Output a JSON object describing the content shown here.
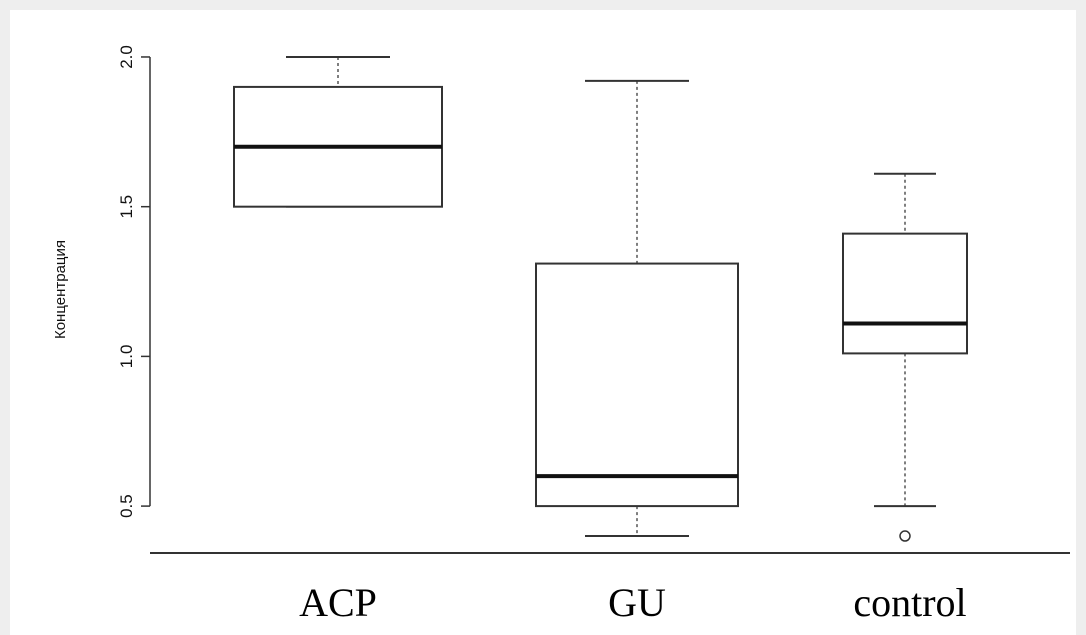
{
  "chart_data": {
    "type": "box",
    "ylabel": "Концентрация",
    "xlabel": "",
    "title": "",
    "ylim": [
      0.33,
      2.05
    ],
    "yticks": [
      "0.5",
      "1.0",
      "1.5",
      "2.0"
    ],
    "categories": [
      "ACP",
      "GU",
      "control"
    ],
    "boxes": [
      {
        "category": "ACP",
        "min": 1.5,
        "q1": 1.5,
        "median": 1.7,
        "q3": 1.9,
        "max": 2.0,
        "outliers": []
      },
      {
        "category": "GU",
        "min": 0.4,
        "q1": 0.5,
        "median": 0.6,
        "q3": 1.31,
        "max": 1.92,
        "outliers": []
      },
      {
        "category": "control",
        "min": 0.5,
        "q1": 1.01,
        "median": 1.11,
        "q3": 1.41,
        "max": 1.61,
        "outliers": [
          0.4
        ]
      }
    ],
    "grid": false,
    "colors": {
      "box": "#333333",
      "median": "#111111",
      "whisker": "#555555",
      "axis": "#333333"
    }
  }
}
